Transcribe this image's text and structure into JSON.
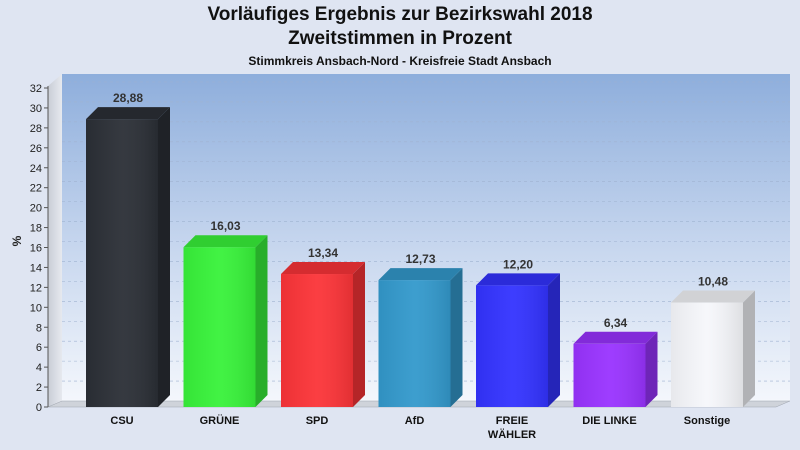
{
  "chart_data": {
    "type": "bar",
    "title": "Vorläufiges Ergebnis zur Bezirkswahl 2018",
    "subtitle": "Zweitstimmen in Prozent",
    "caption": "Stimmkreis Ansbach-Nord - Kreisfreie Stadt Ansbach",
    "ylabel": "%",
    "ylim": [
      0,
      32
    ],
    "yticks": [
      "0",
      "2",
      "4",
      "6",
      "8",
      "10",
      "12",
      "14",
      "16",
      "18",
      "20",
      "22",
      "24",
      "26",
      "28",
      "30",
      "32"
    ],
    "grid": true,
    "categories": [
      {
        "line1": "CSU",
        "line2": ""
      },
      {
        "line1": "GRÜNE",
        "line2": ""
      },
      {
        "line1": "SPD",
        "line2": ""
      },
      {
        "line1": "AfD",
        "line2": ""
      },
      {
        "line1": "FREIE",
        "line2": "WÄHLER"
      },
      {
        "line1": "DIE LINKE",
        "line2": ""
      },
      {
        "line1": "Sonstige",
        "line2": ""
      }
    ],
    "values": [
      28.88,
      16.03,
      13.34,
      12.73,
      12.2,
      6.34,
      10.48
    ],
    "value_labels": [
      "28,88",
      "16,03",
      "13,34",
      "12,73",
      "12,20",
      "6,34",
      "10,48"
    ],
    "colors": [
      "#2b2f36",
      "#38f23a",
      "#fb3438",
      "#3399cc",
      "#3333ff",
      "#9933ff",
      "#f6f7fb"
    ]
  }
}
